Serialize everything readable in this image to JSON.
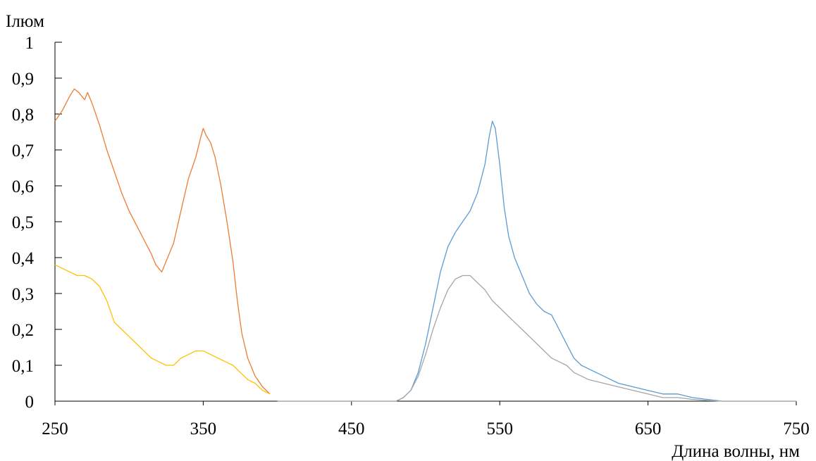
{
  "chart_data": {
    "type": "line",
    "title": "",
    "xlabel": "Длина волны, нм",
    "ylabel": "Iлюм",
    "xlim": [
      250,
      750
    ],
    "ylim": [
      0,
      1
    ],
    "x_ticks": [
      "250",
      "350",
      "450",
      "550",
      "650",
      "750"
    ],
    "y_ticks": [
      "0",
      "0,1",
      "0,2",
      "0,3",
      "0,4",
      "0,5",
      "0,6",
      "0,7",
      "0,8",
      "0,9",
      "1"
    ],
    "grid": false,
    "legend": "none",
    "series": [
      {
        "color": "#ED7D31",
        "x": [
          250,
          255,
          260,
          263,
          266,
          270,
          272,
          275,
          280,
          285,
          290,
          295,
          300,
          305,
          310,
          315,
          318,
          322,
          326,
          330,
          335,
          340,
          345,
          348,
          350,
          352,
          355,
          358,
          362,
          366,
          370,
          373,
          376,
          380,
          385,
          390,
          395
        ],
        "y": [
          0.78,
          0.81,
          0.85,
          0.87,
          0.86,
          0.84,
          0.86,
          0.83,
          0.77,
          0.7,
          0.64,
          0.58,
          0.53,
          0.49,
          0.45,
          0.41,
          0.38,
          0.36,
          0.4,
          0.44,
          0.53,
          0.62,
          0.68,
          0.73,
          0.76,
          0.74,
          0.72,
          0.68,
          0.6,
          0.5,
          0.39,
          0.28,
          0.19,
          0.12,
          0.07,
          0.04,
          0.02
        ]
      },
      {
        "color": "#FFC000",
        "x": [
          250,
          255,
          260,
          265,
          270,
          275,
          280,
          285,
          290,
          295,
          300,
          305,
          310,
          315,
          320,
          325,
          330,
          335,
          340,
          345,
          350,
          355,
          360,
          365,
          370,
          375,
          380,
          385,
          390,
          395
        ],
        "y": [
          0.38,
          0.37,
          0.36,
          0.35,
          0.35,
          0.34,
          0.32,
          0.28,
          0.22,
          0.2,
          0.18,
          0.16,
          0.14,
          0.12,
          0.11,
          0.1,
          0.1,
          0.12,
          0.13,
          0.14,
          0.14,
          0.13,
          0.12,
          0.11,
          0.1,
          0.08,
          0.06,
          0.05,
          0.03,
          0.02
        ]
      },
      {
        "color": "#5B9BD5",
        "x": [
          400,
          450,
          480,
          485,
          490,
          495,
          500,
          505,
          510,
          515,
          520,
          525,
          530,
          535,
          540,
          543,
          545,
          547,
          550,
          553,
          556,
          560,
          565,
          570,
          575,
          580,
          585,
          590,
          595,
          600,
          605,
          610,
          620,
          630,
          640,
          650,
          660,
          670,
          680,
          690,
          700,
          750
        ],
        "y": [
          0.0,
          0.0,
          0.0,
          0.01,
          0.03,
          0.08,
          0.16,
          0.26,
          0.36,
          0.43,
          0.47,
          0.5,
          0.53,
          0.58,
          0.66,
          0.74,
          0.78,
          0.76,
          0.66,
          0.54,
          0.46,
          0.4,
          0.35,
          0.3,
          0.27,
          0.25,
          0.24,
          0.2,
          0.16,
          0.12,
          0.1,
          0.09,
          0.07,
          0.05,
          0.04,
          0.03,
          0.02,
          0.02,
          0.01,
          0.005,
          0.0,
          0.0
        ]
      },
      {
        "color": "#A5A5A5",
        "x": [
          400,
          450,
          480,
          485,
          490,
          495,
          500,
          505,
          510,
          515,
          520,
          525,
          530,
          535,
          540,
          545,
          550,
          555,
          560,
          565,
          570,
          575,
          580,
          585,
          590,
          595,
          600,
          610,
          620,
          630,
          640,
          650,
          660,
          670,
          680,
          690,
          700,
          750
        ],
        "y": [
          0.0,
          0.0,
          0.0,
          0.01,
          0.03,
          0.07,
          0.13,
          0.2,
          0.26,
          0.31,
          0.34,
          0.35,
          0.35,
          0.33,
          0.31,
          0.28,
          0.26,
          0.24,
          0.22,
          0.2,
          0.18,
          0.16,
          0.14,
          0.12,
          0.11,
          0.1,
          0.08,
          0.06,
          0.05,
          0.04,
          0.03,
          0.02,
          0.01,
          0.01,
          0.005,
          0.002,
          0.0,
          0.0
        ]
      }
    ]
  }
}
